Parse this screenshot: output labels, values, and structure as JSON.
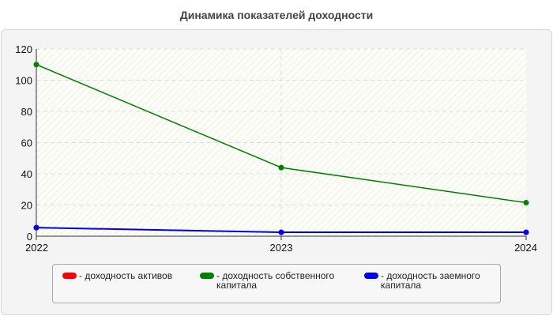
{
  "title": "Динамика показателей доходности",
  "chart_data": {
    "type": "line",
    "title": "Динамика показателей доходности",
    "x": [
      "2022",
      "2023",
      "2024"
    ],
    "ylim": [
      0,
      120
    ],
    "yticks": [
      0,
      20,
      40,
      60,
      80,
      100,
      120
    ],
    "grid": true,
    "legend_position": "bottom",
    "series": [
      {
        "name": "- доходность активов",
        "color": "#ff0000",
        "values": [
          5.5,
          2.5,
          2.5
        ]
      },
      {
        "name": "- доходность собственного капитала",
        "color": "#008000",
        "values": [
          110,
          44,
          21.5
        ]
      },
      {
        "name": "- доходность заемного капитала",
        "color": "#0000ff",
        "values": [
          5.5,
          2.5,
          2.5
        ]
      }
    ]
  },
  "legend": [
    {
      "line1": "- доходность активов",
      "line2": "",
      "color": "#ff0000"
    },
    {
      "line1": "- доходность собственного",
      "line2": "капитала",
      "color": "#008000"
    },
    {
      "line1": "- доходность заемного",
      "line2": "капитала",
      "color": "#0000ff"
    }
  ]
}
